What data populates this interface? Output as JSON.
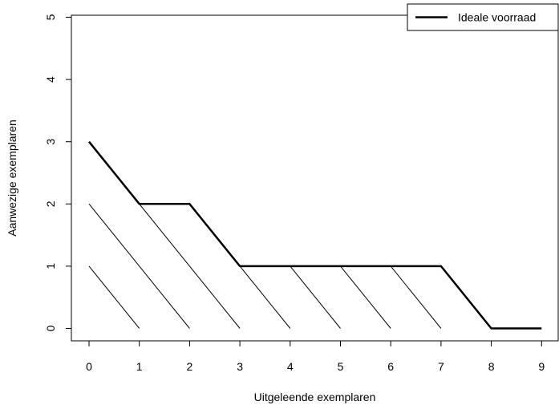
{
  "chart_data": {
    "type": "line",
    "title": "",
    "xlabel": "Uitgeleende exemplaren",
    "ylabel": "Aanwezige exemplaren",
    "xlim": [
      0,
      9
    ],
    "ylim": [
      0,
      5
    ],
    "x_ticks": [
      0,
      1,
      2,
      3,
      4,
      5,
      6,
      7,
      8,
      9
    ],
    "y_ticks": [
      0,
      1,
      2,
      3,
      4,
      5
    ],
    "grid": false,
    "legend": {
      "position": "top-right",
      "entries": [
        "Ideale voorraad"
      ]
    },
    "series": [
      {
        "name": "Ideale voorraad",
        "style": "thick",
        "color": "#000000",
        "x": [
          0,
          1,
          2,
          3,
          4,
          5,
          6,
          7,
          8,
          9
        ],
        "y": [
          3,
          2,
          2,
          1,
          1,
          1,
          1,
          1,
          0,
          0
        ]
      }
    ],
    "segments": [
      {
        "x": [
          0,
          1
        ],
        "y": [
          1,
          0
        ]
      },
      {
        "x": [
          0,
          2
        ],
        "y": [
          2,
          0
        ]
      },
      {
        "x": [
          1,
          3
        ],
        "y": [
          2,
          0
        ]
      },
      {
        "x": [
          2,
          4
        ],
        "y": [
          2,
          0
        ]
      },
      {
        "x": [
          4,
          5
        ],
        "y": [
          1,
          0
        ]
      },
      {
        "x": [
          5,
          6
        ],
        "y": [
          1,
          0
        ]
      },
      {
        "x": [
          6,
          7
        ],
        "y": [
          1,
          0
        ]
      }
    ]
  }
}
